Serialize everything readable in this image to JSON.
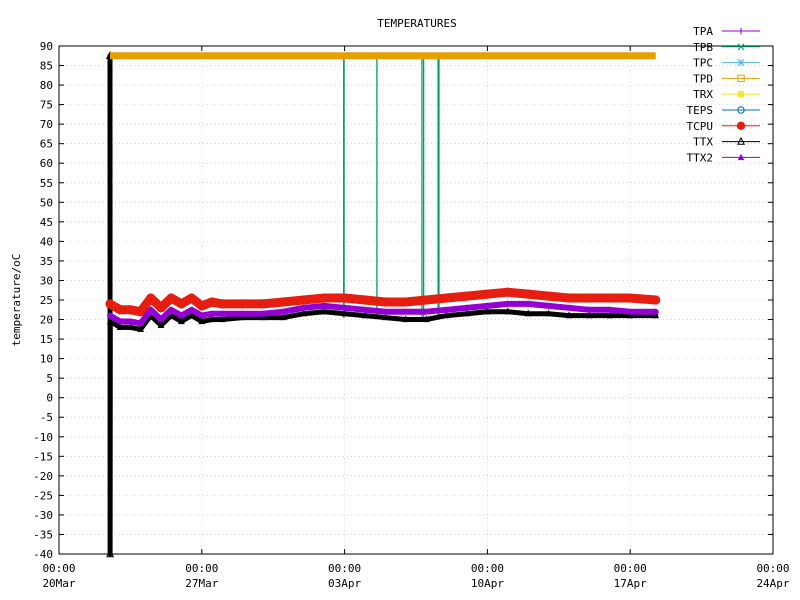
{
  "chart_data": {
    "type": "line",
    "title": "TEMPERATURES",
    "ylabel": "temperature/oC",
    "xlabel": "",
    "ylim": [
      -40,
      90
    ],
    "xlim": [
      "2024-03-20 00:00",
      "2024-04-24 00:00"
    ],
    "grid": true,
    "legend_position": "top-right",
    "x_ticks": [
      {
        "time": "00:00",
        "date": "20Mar"
      },
      {
        "time": "00:00",
        "date": "27Mar"
      },
      {
        "time": "00:00",
        "date": "03Apr"
      },
      {
        "time": "00:00",
        "date": "10Apr"
      },
      {
        "time": "00:00",
        "date": "17Apr"
      },
      {
        "time": "00:00",
        "date": "24Apr"
      }
    ],
    "y_ticks": [
      90,
      85,
      80,
      75,
      70,
      65,
      60,
      55,
      50,
      45,
      40,
      35,
      30,
      25,
      20,
      15,
      10,
      5,
      0,
      -5,
      -10,
      -15,
      -20,
      -25,
      -30,
      -35,
      -40
    ],
    "series": [
      {
        "name": "TPA",
        "color": "#9400d3",
        "marker": "plus",
        "x": [],
        "y": []
      },
      {
        "name": "TPB",
        "color": "#009e73",
        "marker": "cross",
        "x": [
          "2024-04-02 23:00",
          "2024-04-02 23:10",
          "2024-04-02 23:20",
          "2024-04-04 14:00",
          "2024-04-06 19:00",
          "2024-04-06 21:00",
          "2024-04-07 14:00",
          "2024-04-07 15:00"
        ],
        "y": [
          87.5,
          87.5,
          87.5,
          87.5,
          87.5,
          87.5,
          87.5,
          87.5
        ]
      },
      {
        "name": "TPC",
        "color": "#56b4e9",
        "marker": "asterisk",
        "x": [],
        "y": []
      },
      {
        "name": "TPD",
        "color": "#e69f00",
        "marker": "open-square",
        "x": [
          "2024-03-22 12:00",
          "2024-04-18 06:00"
        ],
        "y": [
          87.5,
          87.5
        ]
      },
      {
        "name": "TRX",
        "color": "#f0e442",
        "marker": "filled-square",
        "x": [],
        "y": []
      },
      {
        "name": "TEPS",
        "color": "#0072b2",
        "marker": "open-circle",
        "x": [],
        "y": []
      },
      {
        "name": "TCPU",
        "color": "#e51e10",
        "marker": "filled-circle",
        "x": [
          "2024-03-22 12:00",
          "2024-03-23 00:00",
          "2024-03-23 12:00",
          "2024-03-24 00:00",
          "2024-03-24 12:00",
          "2024-03-25 00:00",
          "2024-03-25 12:00",
          "2024-03-26 00:00",
          "2024-03-26 12:00",
          "2024-03-27 00:00",
          "2024-03-27 12:00",
          "2024-03-28 00:00",
          "2024-03-29 00:00",
          "2024-03-30 00:00",
          "2024-03-31 00:00",
          "2024-04-01 00:00",
          "2024-04-02 00:00",
          "2024-04-03 00:00",
          "2024-04-04 00:00",
          "2024-04-05 00:00",
          "2024-04-06 00:00",
          "2024-04-07 00:00",
          "2024-04-08 00:00",
          "2024-04-09 00:00",
          "2024-04-10 00:00",
          "2024-04-11 00:00",
          "2024-04-12 00:00",
          "2024-04-13 00:00",
          "2024-04-14 00:00",
          "2024-04-15 00:00",
          "2024-04-16 00:00",
          "2024-04-17 00:00",
          "2024-04-18 06:00"
        ],
        "y": [
          24.0,
          22.5,
          22.5,
          22.0,
          25.5,
          23.0,
          25.5,
          24.0,
          25.5,
          23.5,
          24.5,
          24.0,
          24.0,
          24.0,
          24.5,
          25.0,
          25.5,
          25.5,
          25.0,
          24.5,
          24.5,
          25.0,
          25.5,
          26.0,
          26.5,
          27.0,
          26.5,
          26.0,
          25.5,
          25.5,
          25.5,
          25.5,
          25.0
        ]
      },
      {
        "name": "TTX",
        "color": "#000000",
        "marker": "open-triangle",
        "x": [
          "2024-03-22 12:00",
          "2024-03-22 12:10",
          "2024-03-22 12:20",
          "2024-03-23 00:00",
          "2024-03-23 12:00",
          "2024-03-24 00:00",
          "2024-03-24 12:00",
          "2024-03-25 00:00",
          "2024-03-25 12:00",
          "2024-03-26 00:00",
          "2024-03-26 12:00",
          "2024-03-27 00:00",
          "2024-03-27 12:00",
          "2024-03-28 00:00",
          "2024-03-29 00:00",
          "2024-03-30 00:00",
          "2024-03-31 00:00",
          "2024-04-01 00:00",
          "2024-04-02 00:00",
          "2024-04-03 00:00",
          "2024-04-04 00:00",
          "2024-04-05 00:00",
          "2024-04-06 00:00",
          "2024-04-07 00:00",
          "2024-04-08 00:00",
          "2024-04-09 00:00",
          "2024-04-10 00:00",
          "2024-04-11 00:00",
          "2024-04-12 00:00",
          "2024-04-13 00:00",
          "2024-04-14 00:00",
          "2024-04-15 00:00",
          "2024-04-16 00:00",
          "2024-04-17 00:00",
          "2024-04-18 06:00"
        ],
        "y": [
          87.5,
          -40.0,
          19.5,
          18.0,
          18.0,
          17.5,
          21.0,
          18.5,
          21.0,
          19.5,
          21.0,
          19.5,
          20.0,
          20.0,
          20.5,
          20.5,
          20.5,
          21.5,
          22.0,
          21.5,
          21.0,
          20.5,
          20.0,
          20.0,
          21.0,
          21.5,
          22.0,
          22.0,
          21.5,
          21.5,
          21.0,
          21.0,
          21.0,
          21.0,
          21.0
        ]
      },
      {
        "name": "TTX2",
        "color": "#9400d3",
        "marker": "filled-triangle",
        "x": [
          "2024-03-22 12:00",
          "2024-03-23 00:00",
          "2024-03-23 12:00",
          "2024-03-24 00:00",
          "2024-03-24 12:00",
          "2024-03-25 00:00",
          "2024-03-25 12:00",
          "2024-03-26 00:00",
          "2024-03-26 12:00",
          "2024-03-27 00:00",
          "2024-03-27 12:00",
          "2024-03-28 00:00",
          "2024-03-29 00:00",
          "2024-03-30 00:00",
          "2024-03-31 00:00",
          "2024-04-01 00:00",
          "2024-04-02 00:00",
          "2024-04-03 00:00",
          "2024-04-04 00:00",
          "2024-04-05 00:00",
          "2024-04-06 00:00",
          "2024-04-07 00:00",
          "2024-04-08 00:00",
          "2024-04-09 00:00",
          "2024-04-10 00:00",
          "2024-04-11 00:00",
          "2024-04-12 00:00",
          "2024-04-13 00:00",
          "2024-04-14 00:00",
          "2024-04-15 00:00",
          "2024-04-16 00:00",
          "2024-04-17 00:00",
          "2024-04-18 06:00"
        ],
        "y": [
          21.0,
          19.5,
          19.5,
          19.0,
          22.5,
          20.0,
          22.5,
          21.0,
          22.5,
          21.0,
          21.5,
          21.5,
          21.5,
          21.5,
          22.0,
          23.0,
          23.5,
          23.0,
          22.5,
          22.0,
          22.0,
          22.0,
          22.5,
          23.0,
          23.5,
          24.0,
          24.0,
          23.5,
          23.0,
          22.5,
          22.5,
          22.0,
          22.0
        ]
      }
    ]
  }
}
